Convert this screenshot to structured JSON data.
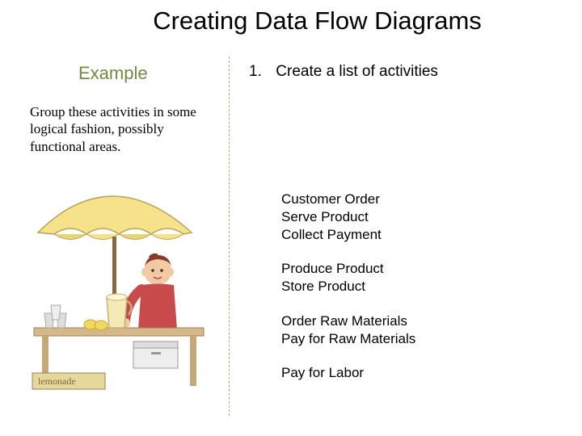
{
  "title": "Creating Data Flow Diagrams",
  "left": {
    "heading": "Example",
    "heading_color": "#6b8e40",
    "description": "Group these activities in some logical fashion, possibly functional areas."
  },
  "divider": {
    "color": "#9bbb6a",
    "style": "dashed"
  },
  "right": {
    "step_number": "1.",
    "step_label": "Create a list of activities",
    "activity_groups": [
      [
        "Customer Order",
        "Serve Product",
        "Collect Payment"
      ],
      [
        "Produce Product",
        "Store Product"
      ],
      [
        "Order Raw Materials",
        "Pay for Raw Materials"
      ],
      [
        "Pay for Labor"
      ]
    ]
  },
  "illustration": {
    "description": "lemonade-stand-clipart",
    "umbrella_color": "#f5e28a",
    "umbrella_shadow": "#b5a45c",
    "pole_color": "#8a6a3a",
    "person_skin": "#f2c9a3",
    "person_hair": "#8a3a2a",
    "person_shirt": "#c94a4a",
    "table_color": "#d4b88a",
    "pitcher_color": "#f5e9b5",
    "lemon_color": "#f0d860",
    "cup_color": "#dddddd",
    "box_color": "#eeeeee",
    "sign_text": "lemonade",
    "sign_color": "#e5d89a"
  },
  "colors": {
    "background": "#ffffff",
    "title_text": "#000000",
    "body_text": "#000000"
  },
  "fonts": {
    "title_size": 31,
    "heading_size": 22,
    "step_size": 19,
    "body_size": 17,
    "desc_family": "Times New Roman"
  }
}
